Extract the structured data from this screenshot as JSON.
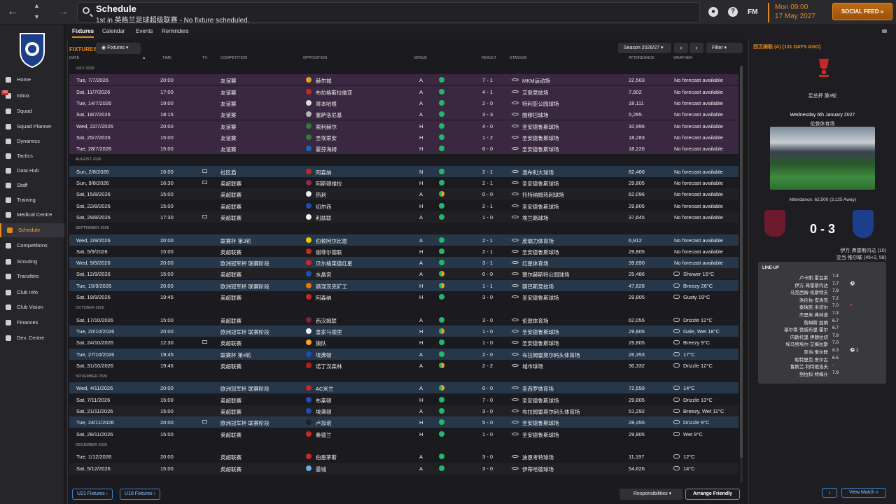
{
  "header": {
    "title": "Schedule",
    "subtitle": "1st in 英格兰足球超级联赛 - No fixture scheduled.",
    "fm": "FM",
    "time": "Mon 09:00",
    "date": "17 May 2027",
    "social_feed": "SOCIAL FEED"
  },
  "sidebar": {
    "items": [
      {
        "label": "Home"
      },
      {
        "label": "Inbox",
        "badge": "100"
      },
      {
        "label": "Squad"
      },
      {
        "label": "Squad Planner"
      },
      {
        "label": "Dynamics"
      },
      {
        "label": "Tactics"
      },
      {
        "label": "Data Hub"
      },
      {
        "label": "Staff"
      },
      {
        "label": "Training"
      },
      {
        "label": "Medical Centre"
      },
      {
        "label": "Schedule"
      },
      {
        "label": "Competitions"
      },
      {
        "label": "Scouting"
      },
      {
        "label": "Transfers"
      },
      {
        "label": "Club Info"
      },
      {
        "label": "Club Vision"
      },
      {
        "label": "Finances"
      },
      {
        "label": "Dev. Centre"
      }
    ]
  },
  "tabs": [
    "Fixtures",
    "Calendar",
    "Events",
    "Reminders"
  ],
  "toolbar": {
    "section_label": "FIXTURES",
    "fixtures_dd": "Fixtures",
    "season": "Season 2026/27",
    "filter": "Filter"
  },
  "columns": [
    "DATE",
    "TIME",
    "TV",
    "COMPETITION",
    "OPPOSITION",
    "VENUE",
    "RESULT",
    "STADIUM",
    "ATTENDANCE",
    "WEATHER"
  ],
  "rows": [
    {
      "month": "JULY 2026"
    },
    {
      "date": "Tue, 7/7/2026",
      "time": "20:00",
      "comp": "友谊赛",
      "opp": "赫尔城",
      "venue": "A",
      "result": "7 - 1",
      "stadium": "MKM运动场",
      "att": "22,503",
      "weather": "No forecast available",
      "kind": "friendly",
      "badge": "#e0a020",
      "dot": "full"
    },
    {
      "date": "Sat, 11/7/2026",
      "time": "17:00",
      "comp": "友谊赛",
      "opp": "布拉格斯拉维亚",
      "venue": "A",
      "result": "4 - 1",
      "stadium": "艾登竞技场",
      "att": "7,902",
      "weather": "No forecast available",
      "kind": "friendly",
      "badge": "#c62828",
      "dot": "full"
    },
    {
      "date": "Tue, 14/7/2026",
      "time": "19:00",
      "comp": "友谊赛",
      "opp": "哥本哈根",
      "venue": "A",
      "result": "2 - 0",
      "stadium": "特利亚公园球场",
      "att": "18,111",
      "weather": "No forecast available",
      "kind": "friendly",
      "badge": "#ddd",
      "dot": "full"
    },
    {
      "date": "Sat, 18/7/2026",
      "time": "18:15",
      "comp": "友谊赛",
      "opp": "塞萨洛尼基",
      "venue": "A",
      "result": "3 - 3",
      "stadium": "图穆巴球场",
      "att": "5,295",
      "weather": "No forecast available",
      "kind": "friendly",
      "badge": "#b5b5b5",
      "dot": "full"
    },
    {
      "date": "Wed, 22/7/2026",
      "time": "20:00",
      "comp": "友谊赛",
      "opp": "索利赫尔",
      "venue": "H",
      "result": "4 - 0",
      "stadium": "圣安德鲁斯球场",
      "att": "10,996",
      "weather": "No forecast available",
      "kind": "friendly",
      "badge": "#2e7d32",
      "dot": "full"
    },
    {
      "date": "Sat, 25/7/2026",
      "time": "15:00",
      "comp": "友谊赛",
      "opp": "圣埃蒂安",
      "venue": "H",
      "result": "1 - 2",
      "stadium": "圣安德鲁斯球场",
      "att": "18,283",
      "weather": "No forecast available",
      "kind": "friendly",
      "badge": "#2e7d32",
      "dot": "full"
    },
    {
      "date": "Tue, 28/7/2026",
      "time": "15:00",
      "comp": "友谊赛",
      "opp": "霍芬海姆",
      "venue": "H",
      "result": "6 - 0",
      "stadium": "圣安德鲁斯球场",
      "att": "18,226",
      "weather": "No forecast available",
      "kind": "friendly",
      "badge": "#1565c0",
      "dot": "full"
    },
    {
      "month": "AUGUST 2026"
    },
    {
      "date": "Sun, 2/8/2026",
      "time": "16:00",
      "tv": true,
      "comp": "社区盾",
      "opp": "阿森纳",
      "venue": "N",
      "result": "2 - 1",
      "stadium": "温布利大球场",
      "att": "82,466",
      "weather": "No forecast available",
      "kind": "cup",
      "badge": "#c62828",
      "dot": "full"
    },
    {
      "date": "Sun, 9/8/2026",
      "time": "16:30",
      "tv": true,
      "comp": "英超联赛",
      "opp": "阿斯顿维拉",
      "venue": "H",
      "result": "2 - 1",
      "stadium": "圣安德鲁斯球场",
      "att": "29,805",
      "weather": "No forecast available",
      "kind": "plain",
      "badge": "#8d2a4f",
      "dot": "full"
    },
    {
      "date": "Sat, 15/8/2026",
      "time": "15:00",
      "comp": "英超联赛",
      "opp": "热刺",
      "venue": "A",
      "result": "0 - 0",
      "stadium": "托特纳姆热刺球场",
      "att": "62,096",
      "weather": "No forecast available",
      "kind": "alt",
      "badge": "#eee",
      "dot": "half"
    },
    {
      "date": "Sat, 22/8/2026",
      "time": "15:00",
      "comp": "英超联赛",
      "opp": "切尔西",
      "venue": "H",
      "result": "2 - 1",
      "stadium": "圣安德鲁斯球场",
      "att": "29,805",
      "weather": "No forecast available",
      "kind": "plain",
      "badge": "#1e4db7",
      "dot": "full"
    },
    {
      "date": "Sat, 29/8/2026",
      "time": "17:30",
      "tv": true,
      "comp": "英超联赛",
      "opp": "利兹联",
      "venue": "A",
      "result": "1 - 0",
      "stadium": "埃兰路球场",
      "att": "37,645",
      "weather": "No forecast available",
      "kind": "alt",
      "badge": "#f1f1f1",
      "dot": "full"
    },
    {
      "month": "SEPTEMBER 2026"
    },
    {
      "date": "Wed, 2/9/2026",
      "time": "20:00",
      "comp": "联赛杯 第3轮",
      "opp": "伯顿阿尔比恩",
      "venue": "A",
      "result": "2 - 1",
      "stadium": "皮瑞力体育场",
      "att": "6,912",
      "weather": "No forecast available",
      "kind": "cup",
      "badge": "#f2c200",
      "dot": "full"
    },
    {
      "date": "Sat, 5/9/2026",
      "time": "15:00",
      "comp": "英超联赛",
      "opp": "谢菲尔德联",
      "venue": "H",
      "result": "2 - 1",
      "stadium": "圣安德鲁斯球场",
      "att": "29,805",
      "weather": "No forecast available",
      "kind": "plain",
      "badge": "#c62828",
      "dot": "full"
    },
    {
      "date": "Wed, 9/9/2026",
      "time": "20:00",
      "comp": "欧洲冠军杯 联赛阶段",
      "opp": "贝尔格莱德红星",
      "venue": "A",
      "result": "3 - 1",
      "stadium": "红星体育场",
      "att": "39,690",
      "weather": "No forecast available",
      "kind": "cup",
      "badge": "#c62828",
      "dot": "full"
    },
    {
      "date": "Sat, 12/9/2026",
      "time": "15:00",
      "comp": "英超联赛",
      "opp": "水晶宫",
      "venue": "A",
      "result": "0 - 0",
      "stadium": "塞尔赫斯特公园球场",
      "att": "25,486",
      "weather": "Shower 15°C",
      "kind": "alt",
      "badge": "#1e4db7",
      "dot": "half"
    },
    {
      "date": "Tue, 15/9/2026",
      "time": "20:00",
      "comp": "欧洲冠军杯 联赛阶段",
      "opp": "顿涅茨克矿工",
      "venue": "H",
      "result": "1 - 1",
      "stadium": "朝巴斯竞技场",
      "att": "47,828",
      "weather": "Breezy 26°C",
      "kind": "cup",
      "badge": "#e77b00",
      "dot": "half"
    },
    {
      "date": "Sat, 19/9/2026",
      "time": "19:45",
      "comp": "英超联赛",
      "opp": "阿森纳",
      "venue": "H",
      "result": "3 - 0",
      "stadium": "圣安德鲁斯球场",
      "att": "29,805",
      "weather": "Gusty 19°C",
      "kind": "plain",
      "badge": "#c62828",
      "dot": "full"
    },
    {
      "month": "OCTOBER 2026"
    },
    {
      "date": "Sat, 17/10/2026",
      "time": "15:00",
      "comp": "英超联赛",
      "opp": "西汉姆联",
      "venue": "A",
      "result": "3 - 0",
      "stadium": "伦敦体育场",
      "att": "62,055",
      "weather": "Drizzle 12°C",
      "kind": "plain",
      "badge": "#7a263a",
      "dot": "full"
    },
    {
      "date": "Tue, 20/10/2026",
      "time": "20:00",
      "comp": "欧洲冠军杯 联赛阶段",
      "opp": "皇家马德里",
      "venue": "H",
      "result": "1 - 0",
      "stadium": "圣安德鲁斯球场",
      "att": "29,805",
      "weather": "Gale, Wet 18°C",
      "kind": "cup",
      "badge": "#f1f1f1",
      "dot": "half"
    },
    {
      "date": "Sat, 24/10/2026",
      "time": "12:30",
      "tv": true,
      "comp": "英超联赛",
      "opp": "狼队",
      "venue": "H",
      "result": "1 - 0",
      "stadium": "圣安德鲁斯球场",
      "att": "29,805",
      "weather": "Breezy 9°C",
      "kind": "plain",
      "badge": "#f5a623",
      "dot": "full"
    },
    {
      "date": "Tue, 27/10/2026",
      "time": "19:45",
      "comp": "联赛杯 第4轮",
      "opp": "埃弗顿",
      "venue": "A",
      "result": "2 - 0",
      "stadium": "布拉姆雷莫尔码头体育场",
      "att": "26,353",
      "weather": "17°C",
      "kind": "cup",
      "badge": "#1e4db7",
      "dot": "full"
    },
    {
      "date": "Sat, 31/10/2026",
      "time": "19:45",
      "comp": "英超联赛",
      "opp": "诺丁汉森林",
      "venue": "A",
      "result": "2 - 2",
      "stadium": "城市球场",
      "att": "30,332",
      "weather": "Drizzle 12°C",
      "kind": "plain",
      "badge": "#b71c1c",
      "dot": "half"
    },
    {
      "month": "NOVEMBER 2026"
    },
    {
      "date": "Wed, 4/11/2026",
      "time": "20:00",
      "comp": "欧洲冠军杯 联赛阶段",
      "opp": "AC米兰",
      "venue": "A",
      "result": "0 - 0",
      "stadium": "圣西罗体育场",
      "att": "72,559",
      "weather": "14°C",
      "kind": "cup",
      "badge": "#c62828",
      "dot": "half"
    },
    {
      "date": "Sat, 7/11/2026",
      "time": "15:00",
      "comp": "英超联赛",
      "opp": "布莱顿",
      "venue": "H",
      "result": "7 - 0",
      "stadium": "圣安德鲁斯球场",
      "att": "29,805",
      "weather": "Drizzle 13°C",
      "kind": "plain",
      "badge": "#1e4db7",
      "dot": "full"
    },
    {
      "date": "Sat, 21/11/2026",
      "time": "15:00",
      "comp": "英超联赛",
      "opp": "埃弗顿",
      "venue": "A",
      "result": "3 - 0",
      "stadium": "布拉姆雷莫尔码头体育场",
      "att": "51,292",
      "weather": "Breezy, Wet 11°C",
      "kind": "alt",
      "badge": "#1e4db7",
      "dot": "full"
    },
    {
      "date": "Tue, 24/11/2026",
      "time": "20:00",
      "tv": true,
      "comp": "欧洲冠军杯 联赛阶段",
      "opp": "卢加诺",
      "venue": "H",
      "result": "5 - 0",
      "stadium": "圣安德鲁斯球场",
      "att": "28,455",
      "weather": "Drizzle 9°C",
      "kind": "cup",
      "badge": "#222",
      "dot": "full"
    },
    {
      "date": "Sat, 28/11/2026",
      "time": "15:00",
      "comp": "英超联赛",
      "opp": "桑德兰",
      "venue": "H",
      "result": "1 - 0",
      "stadium": "圣安德鲁斯球场",
      "att": "29,805",
      "weather": "Wet 9°C",
      "kind": "plain",
      "badge": "#c62828",
      "dot": "full"
    },
    {
      "month": "DECEMBER 2026"
    },
    {
      "date": "Tue, 1/12/2026",
      "time": "20:00",
      "comp": "英超联赛",
      "opp": "伯恩茅斯",
      "venue": "A",
      "result": "3 - 0",
      "stadium": "迪恩考特球场",
      "att": "11,197",
      "weather": "12°C",
      "kind": "plain",
      "badge": "#c62828",
      "dot": "full"
    },
    {
      "date": "Sat, 5/12/2026",
      "time": "15:00",
      "comp": "英超联赛",
      "opp": "曼城",
      "venue": "A",
      "result": "3 - 0",
      "stadium": "伊蒂哈德球场",
      "att": "54,626",
      "weather": "14°C",
      "kind": "alt",
      "badge": "#6cabdd",
      "dot": "full"
    }
  ],
  "bottom": {
    "u21": "U21 Fixtures",
    "u18": "U18 Fixtures",
    "responsibilities": "Responsibilities",
    "arrange": "Arrange Friendly"
  },
  "match": {
    "title": "西汉姆联 (A) (131 DAYS AGO)",
    "competition": "足总杯 第3轮",
    "date": "Wednesday 6th January 2027",
    "venue": "伦敦体育场",
    "attendance": "Attendance: 62,500 (3,125 Away)",
    "score": "0 - 3",
    "scorer1": "伊万·弗雷斯内达 (10)",
    "scorer2": "亚当·惟尔联 (45+2, 58)",
    "lineup_title": "LINE-UP",
    "lineup": [
      {
        "name": "卢卡斯·雷瓦莱",
        "rating": "7.4",
        "extra": ""
      },
      {
        "name": "伊万·弗雷斯内达",
        "rating": "7.7",
        "extra": "⚽"
      },
      {
        "name": "马克西姆·埃斯特夫",
        "rating": "7.9",
        "extra": ""
      },
      {
        "name": "洛伦佐·安洛克",
        "rating": "7.2",
        "extra": ""
      },
      {
        "name": "泰瑞克·米切尔",
        "rating": "7.0",
        "extra": "●"
      },
      {
        "name": "杰里米·弗林波",
        "rating": "7.3",
        "extra": ""
      },
      {
        "name": "詹姆斯·加纳",
        "rating": "6.7",
        "extra": ""
      },
      {
        "name": "基尔南·德威布里-霍尔",
        "rating": "6.7",
        "extra": ""
      },
      {
        "name": "内斯托里·伊朗拉切",
        "rating": "7.8",
        "extra": ""
      },
      {
        "name": "埃马努埃尔·艾梅拉斯",
        "rating": "7.0",
        "extra": ""
      },
      {
        "name": "亚当·惟尔联",
        "rating": "8.3",
        "extra": "⚽ 2"
      },
      {
        "name": "帕特里克·舍尔古",
        "rating": "6.5",
        "extra": ""
      },
      {
        "name": "鲁斯兰·利特维洛夫",
        "rating": "-",
        "extra": ""
      },
      {
        "name": "努拉科·特梅什",
        "rating": "7.9",
        "extra": ""
      }
    ],
    "view_match": "View Match"
  }
}
